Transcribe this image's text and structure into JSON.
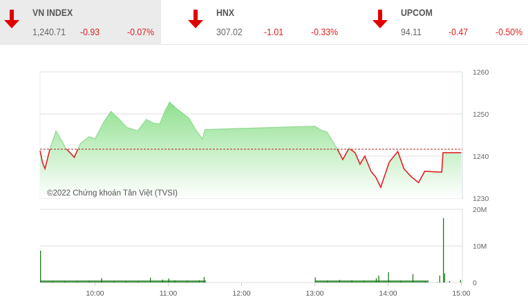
{
  "indices": [
    {
      "name": "VN INDEX",
      "value": "1,240.71",
      "change": "-0.93",
      "percent": "-0.07%",
      "direction": "down",
      "active": true
    },
    {
      "name": "HNX",
      "value": "307.02",
      "change": "-1.01",
      "percent": "-0.33%",
      "direction": "down",
      "active": false
    },
    {
      "name": "UPCOM",
      "value": "94.11",
      "change": "-0.47",
      "percent": "-0.50%",
      "direction": "down",
      "active": false
    }
  ],
  "colors": {
    "down": "#e02020",
    "up_fill": "#8fe08f",
    "volume": "#1a7a1a",
    "reference": "#b02020"
  },
  "chart_data": [
    {
      "type": "area",
      "watermark": "©2022 Chứng khoán Tân Việt (TVSI)",
      "reference": 1241.64,
      "ylim": [
        1230,
        1260
      ],
      "yticks": [
        "1260",
        "1250",
        "1240",
        "1230"
      ],
      "xticks": [
        "10:00",
        "11:00",
        "12:00",
        "13:00",
        "14:00",
        "15:00"
      ],
      "xlim": [
        "9:15",
        "15:00"
      ],
      "grid": true,
      "points": [
        [
          "9:15",
          1241.3
        ],
        [
          "9:17",
          1238.5
        ],
        [
          "9:19",
          1237.0
        ],
        [
          "9:23",
          1241.6
        ],
        [
          "9:28",
          1246.0
        ],
        [
          "9:32",
          1244.0
        ],
        [
          "9:36",
          1241.9
        ],
        [
          "9:43",
          1239.7
        ],
        [
          "9:48",
          1243.0
        ],
        [
          "9:55",
          1244.6
        ],
        [
          "10:00",
          1244.1
        ],
        [
          "10:07",
          1248.0
        ],
        [
          "10:13",
          1250.6
        ],
        [
          "10:19",
          1249.0
        ],
        [
          "10:26",
          1246.8
        ],
        [
          "10:35",
          1246.0
        ],
        [
          "10:42",
          1248.7
        ],
        [
          "10:48",
          1247.8
        ],
        [
          "10:53",
          1247.6
        ],
        [
          "10:57",
          1250.5
        ],
        [
          "11:01",
          1252.8
        ],
        [
          "11:08",
          1251.0
        ],
        [
          "11:17",
          1249.0
        ],
        [
          "11:23",
          1246.0
        ],
        [
          "11:28",
          1244.1
        ],
        [
          "11:30",
          1246.3
        ],
        [
          "13:00",
          1247.1
        ],
        [
          "13:05",
          1246.2
        ],
        [
          "13:10",
          1245.7
        ],
        [
          "13:18",
          1241.9
        ],
        [
          "13:23",
          1239.2
        ],
        [
          "13:28",
          1241.9
        ],
        [
          "13:33",
          1240.8
        ],
        [
          "13:37",
          1238.1
        ],
        [
          "13:41",
          1240.0
        ],
        [
          "13:46",
          1236.4
        ],
        [
          "13:50",
          1235.0
        ],
        [
          "13:54",
          1232.6
        ],
        [
          "14:01",
          1238.6
        ],
        [
          "14:08",
          1241.1
        ],
        [
          "14:13",
          1237.0
        ],
        [
          "14:19",
          1235.1
        ],
        [
          "14:25",
          1233.7
        ],
        [
          "14:30",
          1236.4
        ],
        [
          "14:44",
          1236.2
        ],
        [
          "14:45",
          1240.8
        ],
        [
          "15:00",
          1240.8
        ]
      ]
    },
    {
      "type": "bar",
      "ylim": [
        0,
        20
      ],
      "yticks": [
        "20M",
        "10M",
        "0"
      ],
      "unit": "M",
      "bars": [
        [
          "9:15",
          8.7
        ],
        [
          "9:25",
          0.4
        ],
        [
          "9:35",
          0.4
        ],
        [
          "9:45",
          0.3
        ],
        [
          "9:55",
          0.5
        ],
        [
          "10:05",
          1.2
        ],
        [
          "10:15",
          0.4
        ],
        [
          "10:25",
          0.4
        ],
        [
          "10:35",
          0.3
        ],
        [
          "10:45",
          1.3
        ],
        [
          "10:55",
          0.8
        ],
        [
          "11:00",
          1.1
        ],
        [
          "11:05",
          0.6
        ],
        [
          "11:15",
          0.5
        ],
        [
          "11:25",
          0.6
        ],
        [
          "11:29",
          1.5
        ],
        [
          "13:00",
          1.4
        ],
        [
          "13:10",
          0.5
        ],
        [
          "13:20",
          0.7
        ],
        [
          "13:30",
          0.6
        ],
        [
          "13:40",
          0.5
        ],
        [
          "13:50",
          1.2
        ],
        [
          "13:52",
          1.9
        ],
        [
          "14:00",
          2.8
        ],
        [
          "14:10",
          0.5
        ],
        [
          "14:20",
          2.3
        ],
        [
          "14:30",
          0.3
        ],
        [
          "14:40",
          0.1
        ],
        [
          "14:42",
          1.9
        ],
        [
          "14:45",
          17.6
        ],
        [
          "14:46",
          2.5
        ],
        [
          "14:50",
          0.4
        ],
        [
          "14:59",
          0.7
        ]
      ]
    }
  ]
}
